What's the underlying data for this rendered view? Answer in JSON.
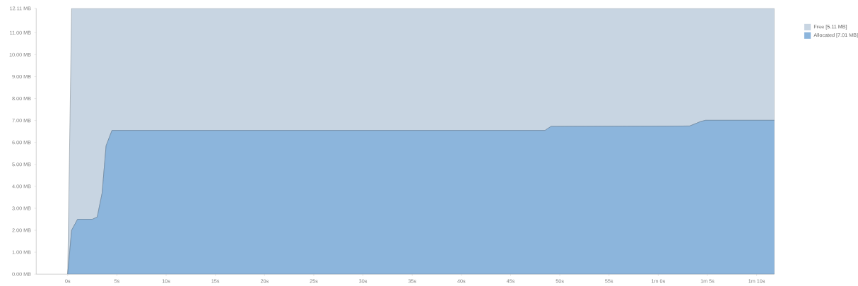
{
  "chart_data": {
    "type": "area",
    "stacked": true,
    "legend": "top right",
    "x": [
      0,
      0.4,
      1,
      2.5,
      3,
      3.5,
      3.9,
      4.5,
      48.5,
      49.1,
      60.8,
      63.2,
      64.3,
      64.8,
      71.8
    ],
    "series": [
      {
        "name": "Allocated [7.01 MB]",
        "color": "#8cb5dc",
        "values": [
          0,
          2.0,
          2.5,
          2.5,
          2.6,
          3.7,
          5.85,
          6.55,
          6.55,
          6.73,
          6.74,
          6.75,
          6.95,
          7.01,
          7.01
        ]
      },
      {
        "name": "Free [5.11 MB]",
        "color": "#c8d5e2",
        "values": [
          0,
          10.11,
          9.61,
          9.61,
          9.51,
          8.41,
          6.26,
          5.56,
          5.56,
          5.38,
          5.37,
          5.36,
          5.16,
          5.1,
          5.1
        ]
      }
    ],
    "xlim": [
      -3.2,
      71.8
    ],
    "ylim": [
      0,
      12.11
    ],
    "xticks": [
      {
        "value": 0,
        "label": "0s"
      },
      {
        "value": 5,
        "label": "5s"
      },
      {
        "value": 10,
        "label": "10s"
      },
      {
        "value": 15,
        "label": "15s"
      },
      {
        "value": 20,
        "label": "20s"
      },
      {
        "value": 25,
        "label": "25s"
      },
      {
        "value": 30,
        "label": "30s"
      },
      {
        "value": 35,
        "label": "35s"
      },
      {
        "value": 40,
        "label": "40s"
      },
      {
        "value": 45,
        "label": "45s"
      },
      {
        "value": 50,
        "label": "50s"
      },
      {
        "value": 55,
        "label": "55s"
      },
      {
        "value": 60,
        "label": "1m 0s"
      },
      {
        "value": 65,
        "label": "1m 5s"
      },
      {
        "value": 70,
        "label": "1m 10s"
      }
    ],
    "yticks": [
      {
        "value": 0,
        "label": "0.00 MB"
      },
      {
        "value": 1,
        "label": "1.00 MB"
      },
      {
        "value": 2,
        "label": "2.00 MB"
      },
      {
        "value": 3,
        "label": "3.00 MB"
      },
      {
        "value": 4,
        "label": "4.00 MB"
      },
      {
        "value": 5,
        "label": "5.00 MB"
      },
      {
        "value": 6,
        "label": "6.00 MB"
      },
      {
        "value": 7,
        "label": "7.00 MB"
      },
      {
        "value": 8,
        "label": "8.00 MB"
      },
      {
        "value": 9,
        "label": "9.00 MB"
      },
      {
        "value": 10,
        "label": "10.00 MB"
      },
      {
        "value": 11,
        "label": "11.00 MB"
      },
      {
        "value": 12.11,
        "label": "12.11 MB"
      }
    ]
  }
}
